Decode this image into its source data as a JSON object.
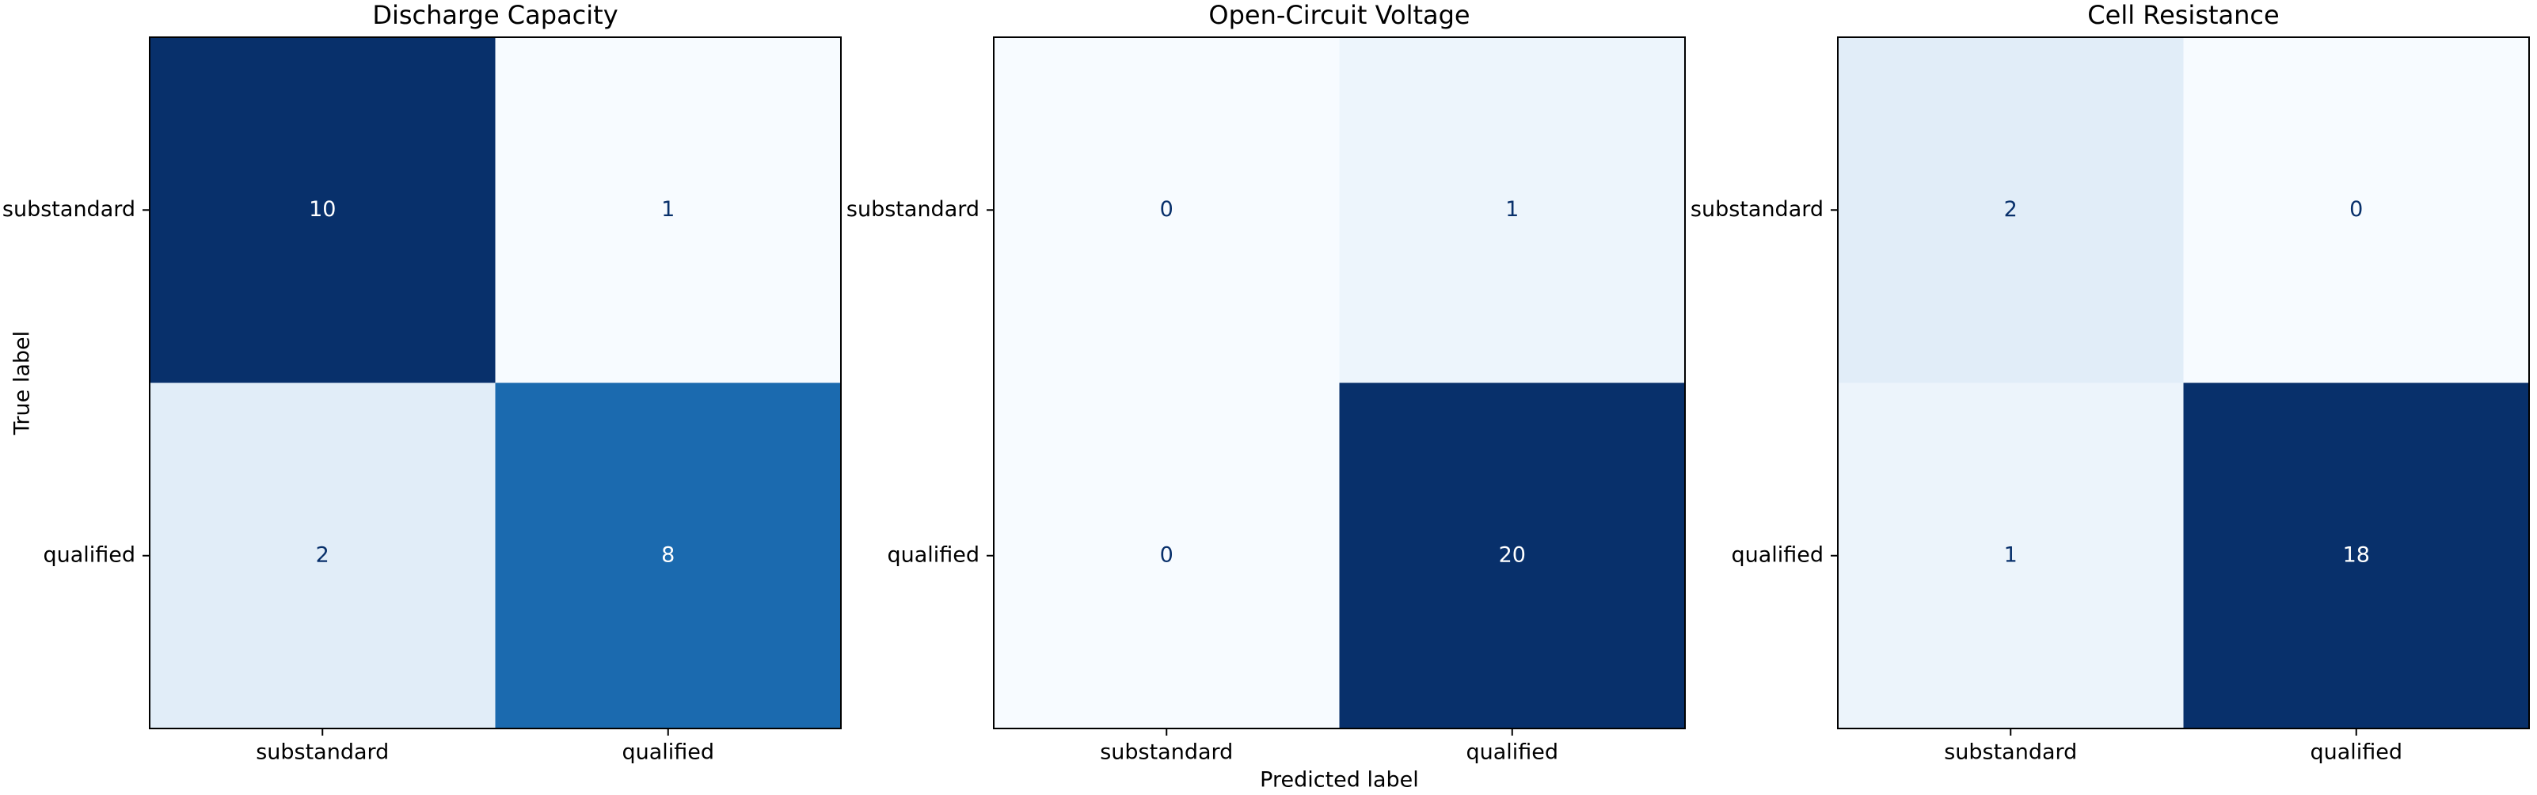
{
  "chart_data": [
    {
      "type": "heatmap",
      "title": "Discharge Capacity",
      "colormap": "Blues",
      "x_categories": [
        "substandard",
        "qualified"
      ],
      "y_categories": [
        "substandard",
        "qualified"
      ],
      "values": [
        [
          10,
          1
        ],
        [
          2,
          8
        ]
      ],
      "ylabel": "True label"
    },
    {
      "type": "heatmap",
      "title": "Open-Circuit Voltage",
      "colormap": "Blues",
      "x_categories": [
        "substandard",
        "qualified"
      ],
      "y_categories": [
        "substandard",
        "qualified"
      ],
      "values": [
        [
          0,
          1
        ],
        [
          0,
          20
        ]
      ],
      "xlabel": "Predicted label"
    },
    {
      "type": "heatmap",
      "title": "Cell Resistance",
      "colormap": "Blues",
      "x_categories": [
        "substandard",
        "qualified"
      ],
      "y_categories": [
        "substandard",
        "qualified"
      ],
      "values": [
        [
          2,
          0
        ],
        [
          1,
          18
        ]
      ]
    }
  ]
}
